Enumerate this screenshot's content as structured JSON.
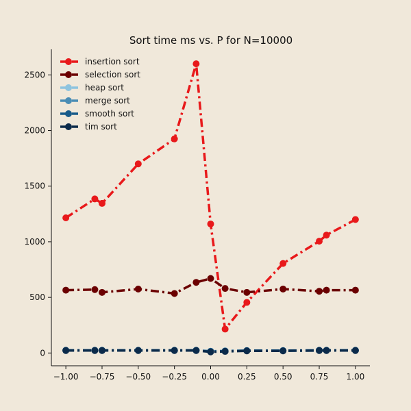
{
  "chart_data": {
    "type": "line",
    "title": "Sort time ms vs. P for N=10000",
    "xlabel": "",
    "ylabel": "",
    "xlim": [
      -1.1,
      1.1
    ],
    "ylim": [
      -115,
      2730
    ],
    "xticks": [
      -1.0,
      -0.75,
      -0.5,
      -0.25,
      0.0,
      0.25,
      0.5,
      0.75,
      1.0
    ],
    "xtick_labels": [
      "−1.00",
      "−0.75",
      "−0.50",
      "−0.25",
      "0.00",
      "0.25",
      "0.50",
      "0.75",
      "1.00"
    ],
    "yticks": [
      0,
      500,
      1000,
      1500,
      2000,
      2500
    ],
    "ytick_labels": [
      "0",
      "500",
      "1000",
      "1500",
      "2000",
      "2500"
    ],
    "grid": false,
    "legend_position": "top-left",
    "x": [
      -1.0,
      -0.8,
      -0.75,
      -0.5,
      -0.25,
      -0.1,
      0.0,
      0.1,
      0.25,
      0.5,
      0.75,
      0.8,
      1.0
    ],
    "series": [
      {
        "name": "insertion sort",
        "color": "#e8191b",
        "values": [
          1215,
          1385,
          1345,
          1700,
          1925,
          2600,
          1160,
          215,
          455,
          805,
          1005,
          1060,
          1200
        ]
      },
      {
        "name": "selection sort",
        "color": "#6b0000",
        "values": [
          565,
          570,
          545,
          575,
          535,
          635,
          670,
          580,
          545,
          575,
          555,
          565,
          565
        ]
      },
      {
        "name": "heap sort",
        "color": "#8ec4df",
        "values": [
          22,
          22,
          22,
          22,
          22,
          22,
          14,
          17,
          20,
          20,
          22,
          22,
          22
        ]
      },
      {
        "name": "merge sort",
        "color": "#4a8db5",
        "values": [
          24,
          24,
          24,
          24,
          24,
          24,
          16,
          19,
          22,
          22,
          24,
          24,
          24
        ]
      },
      {
        "name": "smooth sort",
        "color": "#175a8a",
        "values": [
          24,
          24,
          24,
          24,
          24,
          24,
          14,
          17,
          21,
          21,
          24,
          24,
          24
        ]
      },
      {
        "name": "tim sort",
        "color": "#0b2a4a",
        "values": [
          22,
          22,
          22,
          22,
          22,
          22,
          10,
          14,
          19,
          19,
          22,
          22,
          22
        ]
      }
    ]
  }
}
